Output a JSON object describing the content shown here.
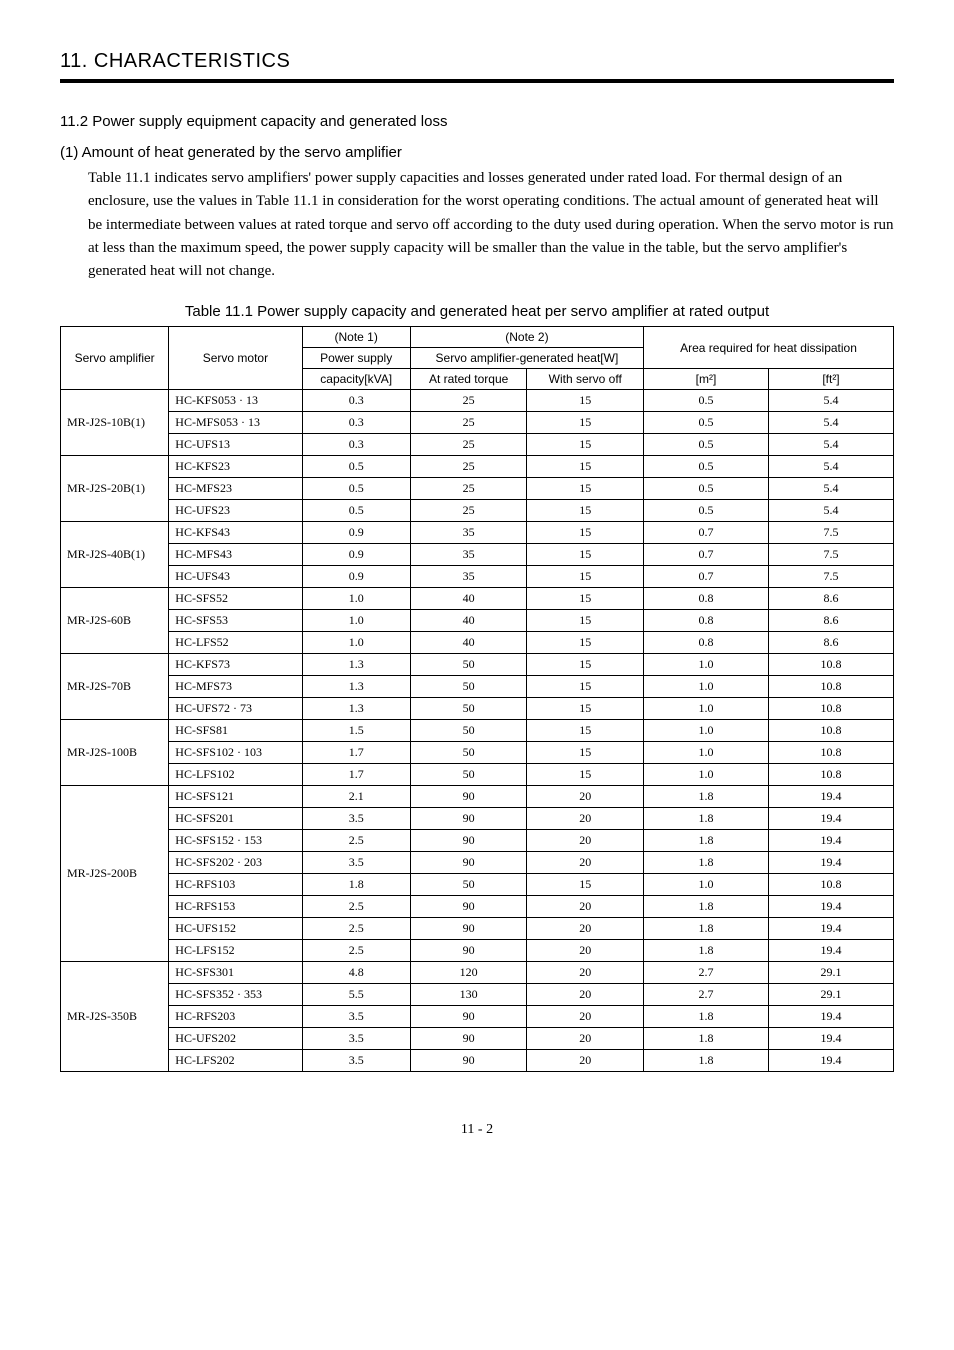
{
  "chapter_title": "11. CHARACTERISTICS",
  "section_title": "11.2 Power supply equipment capacity and generated loss",
  "subsection_title": "(1) Amount of heat generated by the servo amplifier",
  "body_text": "Table 11.1 indicates servo amplifiers' power supply capacities and losses generated under rated load. For thermal design of an enclosure, use the values in Table 11.1 in consideration for the worst operating conditions. The actual amount of generated heat will be intermediate between values at rated torque and servo off according to the duty used during operation. When the servo motor is run at less than the maximum speed, the power supply capacity will be smaller than the value in the table, but the servo amplifier's generated heat will not change.",
  "table_caption": "Table 11.1 Power supply capacity and generated heat per servo amplifier at rated output",
  "headers": {
    "servo_amp": "Servo amplifier",
    "servo_motor": "Servo motor",
    "note1": "(Note 1)",
    "power_supply": "Power supply",
    "capacity": "capacity[kVA]",
    "note2": "(Note 2)",
    "gen_heat": "Servo amplifier-generated heat[W]",
    "at_rated": "At rated torque",
    "servo_off": "With servo off",
    "area_req": "Area required for heat dissipation",
    "m2": "[m²]",
    "ft2": "[ft²]"
  },
  "groups": [
    {
      "amp": "MR-J2S-10B(1)",
      "rows": [
        {
          "motor": "HC-KFS053 · 13",
          "cap": "0.3",
          "rt": "25",
          "off": "15",
          "m2": "0.5",
          "ft2": "5.4"
        },
        {
          "motor": "HC-MFS053 · 13",
          "cap": "0.3",
          "rt": "25",
          "off": "15",
          "m2": "0.5",
          "ft2": "5.4"
        },
        {
          "motor": "HC-UFS13",
          "cap": "0.3",
          "rt": "25",
          "off": "15",
          "m2": "0.5",
          "ft2": "5.4"
        }
      ]
    },
    {
      "amp": "MR-J2S-20B(1)",
      "rows": [
        {
          "motor": "HC-KFS23",
          "cap": "0.5",
          "rt": "25",
          "off": "15",
          "m2": "0.5",
          "ft2": "5.4"
        },
        {
          "motor": "HC-MFS23",
          "cap": "0.5",
          "rt": "25",
          "off": "15",
          "m2": "0.5",
          "ft2": "5.4"
        },
        {
          "motor": "HC-UFS23",
          "cap": "0.5",
          "rt": "25",
          "off": "15",
          "m2": "0.5",
          "ft2": "5.4"
        }
      ]
    },
    {
      "amp": "MR-J2S-40B(1)",
      "rows": [
        {
          "motor": "HC-KFS43",
          "cap": "0.9",
          "rt": "35",
          "off": "15",
          "m2": "0.7",
          "ft2": "7.5"
        },
        {
          "motor": "HC-MFS43",
          "cap": "0.9",
          "rt": "35",
          "off": "15",
          "m2": "0.7",
          "ft2": "7.5"
        },
        {
          "motor": "HC-UFS43",
          "cap": "0.9",
          "rt": "35",
          "off": "15",
          "m2": "0.7",
          "ft2": "7.5"
        }
      ]
    },
    {
      "amp": "MR-J2S-60B",
      "rows": [
        {
          "motor": "HC-SFS52",
          "cap": "1.0",
          "rt": "40",
          "off": "15",
          "m2": "0.8",
          "ft2": "8.6"
        },
        {
          "motor": "HC-SFS53",
          "cap": "1.0",
          "rt": "40",
          "off": "15",
          "m2": "0.8",
          "ft2": "8.6"
        },
        {
          "motor": "HC-LFS52",
          "cap": "1.0",
          "rt": "40",
          "off": "15",
          "m2": "0.8",
          "ft2": "8.6"
        }
      ]
    },
    {
      "amp": "MR-J2S-70B",
      "rows": [
        {
          "motor": "HC-KFS73",
          "cap": "1.3",
          "rt": "50",
          "off": "15",
          "m2": "1.0",
          "ft2": "10.8"
        },
        {
          "motor": "HC-MFS73",
          "cap": "1.3",
          "rt": "50",
          "off": "15",
          "m2": "1.0",
          "ft2": "10.8"
        },
        {
          "motor": "HC-UFS72 · 73",
          "cap": "1.3",
          "rt": "50",
          "off": "15",
          "m2": "1.0",
          "ft2": "10.8"
        }
      ]
    },
    {
      "amp": "MR-J2S-100B",
      "rows": [
        {
          "motor": "HC-SFS81",
          "cap": "1.5",
          "rt": "50",
          "off": "15",
          "m2": "1.0",
          "ft2": "10.8"
        },
        {
          "motor": "HC-SFS102 · 103",
          "cap": "1.7",
          "rt": "50",
          "off": "15",
          "m2": "1.0",
          "ft2": "10.8"
        },
        {
          "motor": "HC-LFS102",
          "cap": "1.7",
          "rt": "50",
          "off": "15",
          "m2": "1.0",
          "ft2": "10.8"
        }
      ]
    },
    {
      "amp": "MR-J2S-200B",
      "rows": [
        {
          "motor": "HC-SFS121",
          "cap": "2.1",
          "rt": "90",
          "off": "20",
          "m2": "1.8",
          "ft2": "19.4"
        },
        {
          "motor": "HC-SFS201",
          "cap": "3.5",
          "rt": "90",
          "off": "20",
          "m2": "1.8",
          "ft2": "19.4"
        },
        {
          "motor": "HC-SFS152 · 153",
          "cap": "2.5",
          "rt": "90",
          "off": "20",
          "m2": "1.8",
          "ft2": "19.4"
        },
        {
          "motor": "HC-SFS202 · 203",
          "cap": "3.5",
          "rt": "90",
          "off": "20",
          "m2": "1.8",
          "ft2": "19.4"
        },
        {
          "motor": "HC-RFS103",
          "cap": "1.8",
          "rt": "50",
          "off": "15",
          "m2": "1.0",
          "ft2": "10.8"
        },
        {
          "motor": "HC-RFS153",
          "cap": "2.5",
          "rt": "90",
          "off": "20",
          "m2": "1.8",
          "ft2": "19.4"
        },
        {
          "motor": "HC-UFS152",
          "cap": "2.5",
          "rt": "90",
          "off": "20",
          "m2": "1.8",
          "ft2": "19.4"
        },
        {
          "motor": "HC-LFS152",
          "cap": "2.5",
          "rt": "90",
          "off": "20",
          "m2": "1.8",
          "ft2": "19.4"
        }
      ]
    },
    {
      "amp": "MR-J2S-350B",
      "rows": [
        {
          "motor": "HC-SFS301",
          "cap": "4.8",
          "rt": "120",
          "off": "20",
          "m2": "2.7",
          "ft2": "29.1"
        },
        {
          "motor": "HC-SFS352 · 353",
          "cap": "5.5",
          "rt": "130",
          "off": "20",
          "m2": "2.7",
          "ft2": "29.1"
        },
        {
          "motor": "HC-RFS203",
          "cap": "3.5",
          "rt": "90",
          "off": "20",
          "m2": "1.8",
          "ft2": "19.4"
        },
        {
          "motor": "HC-UFS202",
          "cap": "3.5",
          "rt": "90",
          "off": "20",
          "m2": "1.8",
          "ft2": "19.4"
        },
        {
          "motor": "HC-LFS202",
          "cap": "3.5",
          "rt": "90",
          "off": "20",
          "m2": "1.8",
          "ft2": "19.4"
        }
      ]
    }
  ],
  "page_number": "11 -  2",
  "col_widths": {
    "amp": "13%",
    "motor": "16%",
    "cap": "13%",
    "rt": "14%",
    "off": "14%",
    "m2": "15%",
    "ft2": "15%"
  }
}
